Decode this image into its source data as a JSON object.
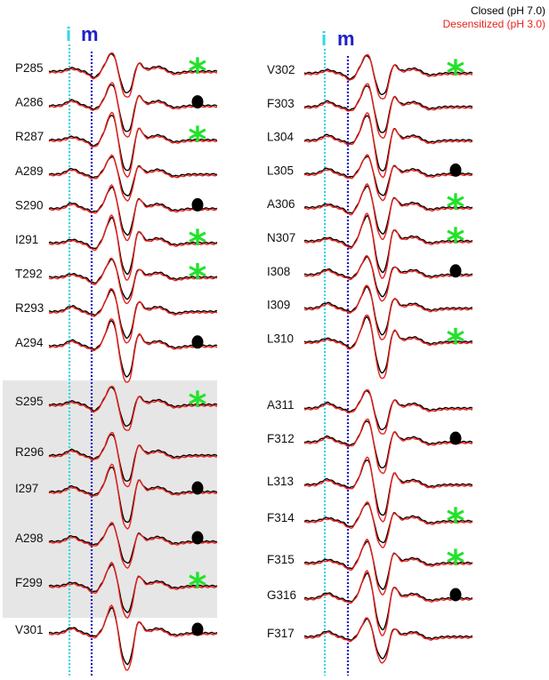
{
  "chart_data": {
    "type": "line",
    "legend": {
      "position": "top-right",
      "entries": [
        {
          "label": "Closed (pH 7.0)",
          "color": "#000000"
        },
        {
          "label": "Desensitized (pH 3.0)",
          "color": "#e8211b"
        }
      ]
    },
    "markers": {
      "i": {
        "label": "i",
        "color": "#33d6e6"
      },
      "m": {
        "label": "m",
        "color": "#1f1fc8"
      }
    },
    "symbols": {
      "star": {
        "glyph": "*",
        "color": "#22e22a"
      },
      "dot": {
        "glyph": "●",
        "color": "#000000"
      }
    },
    "shaded_residues": [
      "S295",
      "R296",
      "I297",
      "A298",
      "F299"
    ],
    "panels": [
      {
        "residues": [
          {
            "label": "P285",
            "symbol": "star"
          },
          {
            "label": "A286",
            "symbol": "dot"
          },
          {
            "label": "R287",
            "symbol": "star"
          },
          {
            "label": "A289",
            "symbol": ""
          },
          {
            "label": "S290",
            "symbol": "dot"
          },
          {
            "label": "I291",
            "symbol": "star-small"
          },
          {
            "label": "T292",
            "symbol": "star-small"
          },
          {
            "label": "R293",
            "symbol": ""
          },
          {
            "label": "A294",
            "symbol": "dot"
          },
          {
            "label": "S295",
            "symbol": "star"
          },
          {
            "label": "R296",
            "symbol": ""
          },
          {
            "label": "I297",
            "symbol": "dot"
          },
          {
            "label": "A298",
            "symbol": "dot"
          },
          {
            "label": "F299",
            "symbol": "star"
          },
          {
            "label": "V301",
            "symbol": "dot"
          }
        ]
      },
      {
        "residues": [
          {
            "label": "V302",
            "symbol": "star"
          },
          {
            "label": "F303",
            "symbol": ""
          },
          {
            "label": "L304",
            "symbol": ""
          },
          {
            "label": "L305",
            "symbol": "dot"
          },
          {
            "label": "A306",
            "symbol": "star"
          },
          {
            "label": "N307",
            "symbol": "star"
          },
          {
            "label": "I308",
            "symbol": "dot"
          },
          {
            "label": "I309",
            "symbol": ""
          },
          {
            "label": "L310",
            "symbol": "star"
          },
          {
            "label": "A311",
            "symbol": ""
          },
          {
            "label": "F312",
            "symbol": "dot"
          },
          {
            "label": "L313",
            "symbol": ""
          },
          {
            "label": "F314",
            "symbol": "star"
          },
          {
            "label": "F315",
            "symbol": "star"
          },
          {
            "label": "G316",
            "symbol": "dot"
          },
          {
            "label": "F317",
            "symbol": ""
          }
        ]
      }
    ]
  }
}
